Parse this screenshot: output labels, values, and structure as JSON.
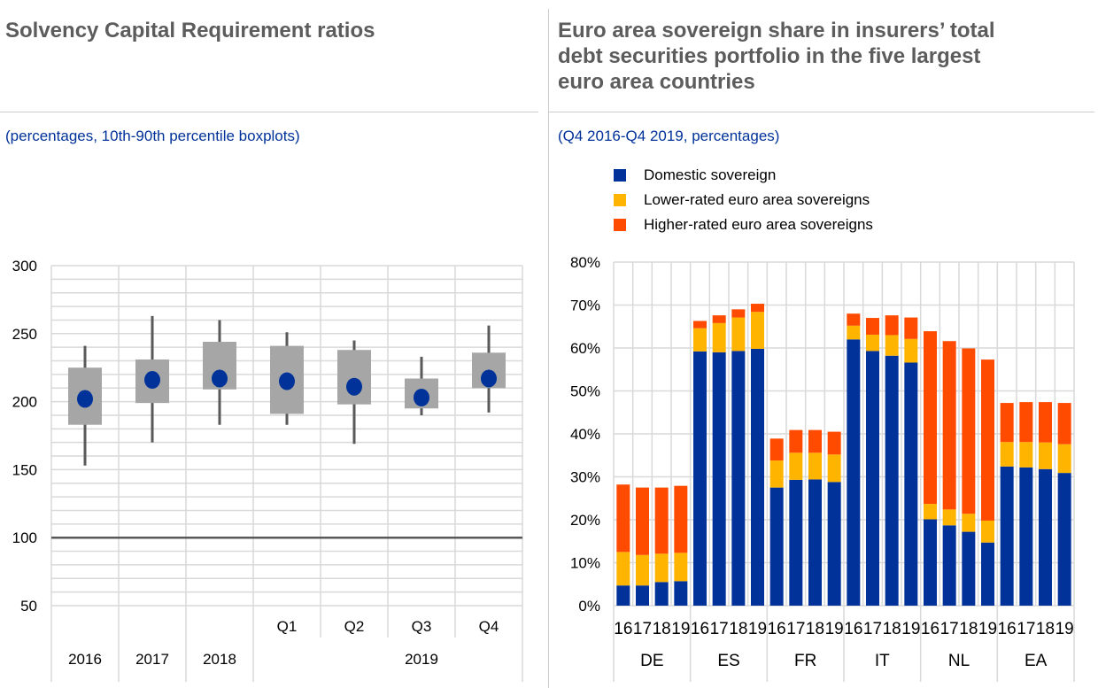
{
  "left": {
    "title": "Solvency Capital Requirement ratios",
    "subtitle": "(percentages, 10th-90th percentile boxplots)"
  },
  "right": {
    "title_lines": [
      "Euro area sovereign share in insurers’ total",
      "debt securities portfolio in the five largest",
      "euro area countries"
    ],
    "subtitle": "(Q4 2016-Q4 2019, percentages)"
  },
  "chart_data": [
    {
      "type": "boxplot",
      "title": "Solvency Capital Requirement ratios",
      "ylim": [
        50,
        300
      ],
      "yticks": [
        50,
        100,
        150,
        200,
        250,
        300
      ],
      "reference_line": 100,
      "categories": [
        "2016",
        "2017",
        "2018",
        "Q1",
        "Q2",
        "Q3",
        "Q4"
      ],
      "group_labels": [
        "2016",
        "2017",
        "2018",
        "2019"
      ],
      "p10": [
        153,
        170,
        183,
        183,
        169,
        190,
        192
      ],
      "q1": [
        183,
        199,
        209,
        191,
        198,
        195,
        210
      ],
      "median": [
        202,
        216,
        217,
        215,
        211,
        203,
        217
      ],
      "q3": [
        225,
        231,
        244,
        241,
        238,
        217,
        236
      ],
      "p90": [
        241,
        263,
        260,
        251,
        245,
        233,
        256
      ],
      "colors": {
        "box": "#a6a6a6",
        "median": "#003299",
        "whisker": "#595959"
      }
    },
    {
      "type": "bar",
      "stacked": true,
      "ylim": [
        0,
        80
      ],
      "yticks": [
        "0%",
        "10%",
        "20%",
        "30%",
        "40%",
        "50%",
        "60%",
        "70%",
        "80%"
      ],
      "countries": [
        "DE",
        "ES",
        "FR",
        "IT",
        "NL",
        "EA"
      ],
      "years": [
        "16",
        "17",
        "18",
        "19"
      ],
      "series": [
        {
          "name": "Domestic sovereign",
          "color": "#003299",
          "values": [
            4.7,
            4.7,
            5.5,
            5.7,
            59.2,
            59.0,
            59.3,
            59.8,
            27.5,
            29.3,
            29.4,
            28.8,
            62.0,
            59.3,
            58.2,
            56.6,
            20.1,
            18.7,
            17.2,
            14.7,
            32.4,
            32.2,
            31.8,
            30.9
          ]
        },
        {
          "name": "Lower-rated euro area sovereigns",
          "color": "#ffb400",
          "values": [
            7.8,
            7.1,
            6.6,
            6.6,
            5.4,
            6.8,
            7.8,
            8.6,
            6.3,
            6.3,
            6.2,
            6.4,
            3.2,
            3.8,
            4.8,
            5.5,
            3.6,
            3.7,
            4.2,
            5.1,
            5.7,
            5.9,
            6.2,
            6.7
          ]
        },
        {
          "name": "Higher-rated euro area sovereigns",
          "color": "#ff4b00",
          "values": [
            15.7,
            15.7,
            15.4,
            15.6,
            1.7,
            1.8,
            1.9,
            1.9,
            5.1,
            5.3,
            5.3,
            5.3,
            2.8,
            3.9,
            4.6,
            5.0,
            40.2,
            39.2,
            38.5,
            37.5,
            9.1,
            9.3,
            9.4,
            9.6
          ]
        }
      ],
      "legend_position": "top-left"
    }
  ]
}
